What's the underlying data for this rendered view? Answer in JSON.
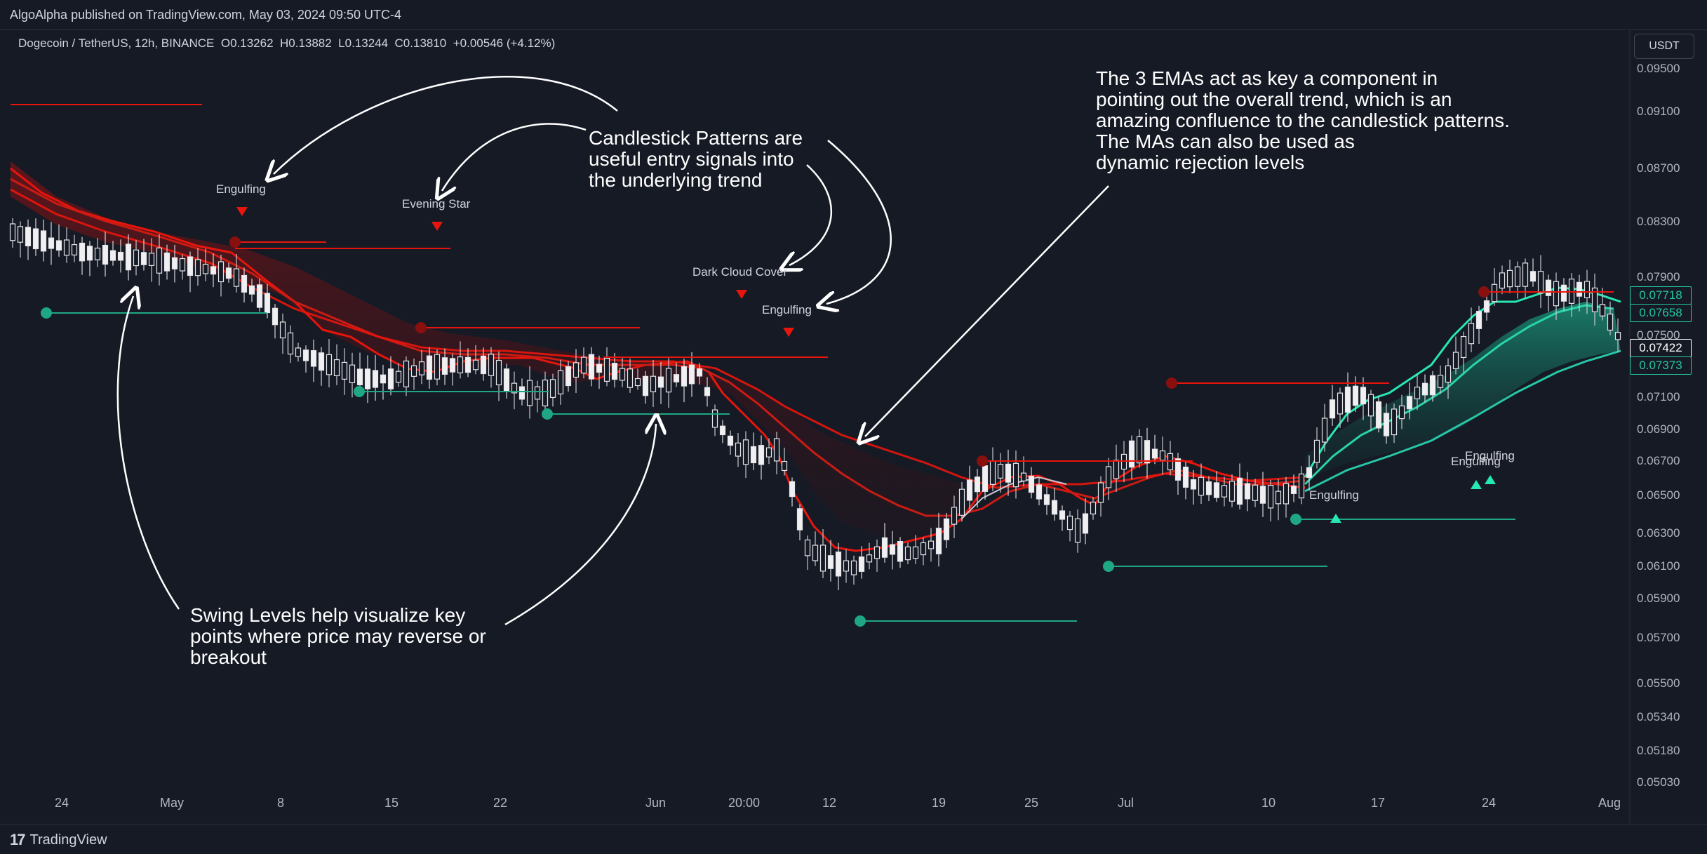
{
  "header": {
    "publisher_text": "AlgoAlpha published on TradingView.com, May 03, 2024 09:50 UTC-4"
  },
  "legend": {
    "symbol": "Dogecoin / TetherUS, 12h, BINANCE",
    "open": "O0.13262",
    "high": "H0.13882",
    "low": "L0.13244",
    "close": "C0.13810",
    "change": "+0.00546 (+4.12%)"
  },
  "currency_button": "USDT",
  "price_axis": [
    "0.09500",
    "0.09100",
    "0.08700",
    "0.08300",
    "0.07900",
    "0.07500",
    "0.07100",
    "0.06900",
    "0.06700",
    "0.06500",
    "0.06300",
    "0.06100",
    "0.05900",
    "0.05700",
    "0.05500",
    "0.05340",
    "0.05180",
    "0.05030"
  ],
  "price_tags": [
    {
      "value": "0.07718",
      "color": "#26c6a6",
      "style": "outline"
    },
    {
      "value": "0.07658",
      "color": "#26c6a6",
      "style": "outline"
    },
    {
      "value": "0.07422",
      "color": "#ffffff",
      "style": "solid"
    },
    {
      "value": "0.07373",
      "color": "#26c6a6",
      "style": "outline"
    }
  ],
  "time_axis": [
    "24",
    "May",
    "8",
    "15",
    "22",
    "Jun",
    "20:00",
    "12",
    "19",
    "25",
    "Jul",
    "10",
    "17",
    "24",
    "Aug"
  ],
  "annotations": {
    "candles": "Candlestick Patterns are\nuseful entry signals into\nthe underlying trend",
    "emas": "The 3 EMAs act as key a component in\npointing out the overall trend, which is an\namazing confluence to the candlestick patterns.\nThe MAs can also be used as\ndynamic rejection levels",
    "swing": "Swing Levels help visualize key\npoints where price may reverse or\nbreakout"
  },
  "patterns": [
    {
      "label": "Engulfing",
      "dir": "bear"
    },
    {
      "label": "Evening Star",
      "dir": "bear"
    },
    {
      "label": "Dark Cloud Cover",
      "dir": "bear"
    },
    {
      "label": "Engulfing",
      "dir": "bear"
    },
    {
      "label": "Engulfing",
      "dir": "bull"
    },
    {
      "label": "Engulfing",
      "dir": "bull"
    },
    {
      "label": "Engulfing",
      "dir": "bull"
    }
  ],
  "footer": {
    "brand": "TradingView"
  },
  "colors": {
    "background": "#161a25",
    "bear": "#e8150c",
    "bull": "#26e8b0",
    "swing_green": "#1fa783",
    "text": "#d1d4dc"
  },
  "icons": {
    "logo": "tradingview-logo-icon",
    "bear_marker": "triangle-down-icon",
    "bull_marker": "triangle-up-icon"
  }
}
